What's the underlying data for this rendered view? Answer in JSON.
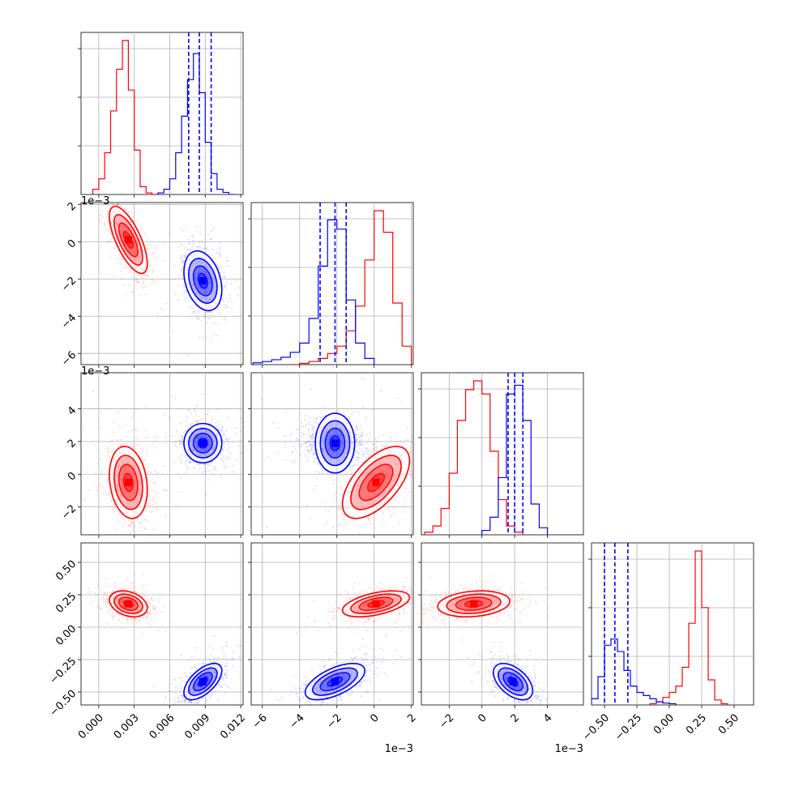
{
  "chart_data": {
    "type": "corner",
    "colors": {
      "red": "#ff0000",
      "blue": "#0000ff"
    },
    "grid": true,
    "variables": [
      {
        "range": [
          -0.0015,
          0.0122
        ],
        "ticks": [
          "0.000",
          "0.003",
          "0.006",
          "0.009",
          "0.012"
        ],
        "tick_values": [
          0,
          0.003,
          0.006,
          0.009,
          0.012
        ],
        "offset": ""
      },
      {
        "range": [
          -0.0066,
          0.0021
        ],
        "ticks": [
          "−6",
          "−4",
          "−2",
          "0",
          "2"
        ],
        "tick_values": [
          -0.006,
          -0.004,
          -0.002,
          0,
          0.002
        ],
        "offset": "1e−3"
      },
      {
        "range": [
          -0.0037,
          0.0062
        ],
        "ticks": [
          "−2",
          "0",
          "2",
          "4"
        ],
        "tick_values": [
          -0.002,
          0,
          0.002,
          0.004
        ],
        "offset": "1e−3"
      },
      {
        "range": [
          -0.6,
          0.65
        ],
        "ticks": [
          "−0.50",
          "−0.25",
          "0.00",
          "0.25",
          "0.50"
        ],
        "tick_values": [
          -0.5,
          -0.25,
          0,
          0.25,
          0.5
        ],
        "offset": ""
      }
    ],
    "histograms": [
      {
        "blue_quantiles": [
          0.0076,
          0.0085,
          0.0095
        ],
        "red": {
          "edges": [
            -0.0005,
            0.0,
            0.0005,
            0.001,
            0.0015,
            0.002,
            0.0025,
            0.003,
            0.0035,
            0.004,
            0.0045,
            0.005
          ],
          "counts": [
            0.1,
            0.3,
            0.8,
            1.6,
            2.4,
            2.95,
            2.0,
            0.85,
            0.15,
            0.03,
            0.0
          ]
        },
        "blue": {
          "edges": [
            0.005,
            0.0055,
            0.006,
            0.0065,
            0.007,
            0.0075,
            0.008,
            0.0085,
            0.009,
            0.0095,
            0.01,
            0.0105,
            0.011,
            0.0115
          ],
          "counts": [
            0.03,
            0.1,
            0.3,
            0.8,
            1.5,
            2.2,
            2.7,
            1.95,
            1.0,
            0.4,
            0.1,
            0.04,
            0.0
          ]
        }
      },
      {
        "blue_quantiles": [
          -0.0029,
          -0.0021,
          -0.0015
        ],
        "red": {
          "edges": [
            -0.0045,
            -0.004,
            -0.0035,
            -0.003,
            -0.0025,
            -0.002,
            -0.0015,
            -0.001,
            -0.0005,
            0.0,
            0.0005,
            0.001,
            0.0015,
            0.002
          ],
          "counts": [
            0.0,
            0.02,
            0.05,
            0.1,
            0.18,
            0.3,
            0.55,
            0.95,
            1.7,
            2.5,
            2.15,
            1.0,
            0.3
          ]
        },
        "blue": {
          "edges": [
            -0.0065,
            -0.006,
            -0.0055,
            -0.005,
            -0.0045,
            -0.004,
            -0.0035,
            -0.003,
            -0.0025,
            -0.002,
            -0.0015,
            -0.001,
            -0.0005,
            0.0
          ],
          "counts": [
            0.03,
            0.05,
            0.08,
            0.12,
            0.2,
            0.35,
            0.75,
            1.6,
            2.35,
            2.2,
            1.05,
            0.35,
            0.1
          ]
        }
      },
      {
        "blue_quantiles": [
          0.0016,
          0.002,
          0.0025
        ],
        "red": {
          "edges": [
            -0.0035,
            -0.003,
            -0.0025,
            -0.002,
            -0.0015,
            -0.001,
            -0.0005,
            0.0,
            0.0005,
            0.001,
            0.0015,
            0.002,
            0.0025
          ],
          "counts": [
            0.03,
            0.1,
            0.3,
            0.7,
            1.3,
            1.65,
            1.75,
            1.6,
            0.95,
            0.4,
            0.1,
            0.03
          ]
        },
        "blue": {
          "edges": [
            0.0,
            0.0005,
            0.001,
            0.0015,
            0.002,
            0.0025,
            0.003,
            0.0035,
            0.004
          ],
          "counts": [
            0.05,
            0.2,
            0.65,
            1.6,
            1.7,
            1.3,
            0.35,
            0.08
          ]
        }
      },
      {
        "blue_quantiles": [
          -0.5,
          -0.42,
          -0.32
        ],
        "red": {
          "edges": [
            -0.15,
            -0.1,
            -0.05,
            0.0,
            0.05,
            0.1,
            0.15,
            0.2,
            0.25,
            0.3,
            0.35,
            0.4,
            0.45
          ],
          "counts": [
            0.02,
            0.05,
            0.12,
            0.2,
            0.3,
            0.6,
            1.3,
            2.45,
            1.55,
            0.4,
            0.08,
            0.02
          ]
        },
        "blue": {
          "edges": [
            -0.6,
            -0.55,
            -0.5,
            -0.45,
            -0.4,
            -0.35,
            -0.3,
            -0.25,
            -0.2,
            -0.15,
            -0.1,
            -0.05,
            0.0,
            0.05
          ],
          "counts": [
            0.1,
            0.45,
            0.95,
            1.05,
            0.85,
            0.55,
            0.3,
            0.2,
            0.15,
            0.1,
            0.05,
            0.03,
            0.02
          ]
        }
      }
    ],
    "clusters": [
      {
        "series": "red",
        "mean": [
          0.0025,
          0.0001,
          -0.0005,
          0.18
        ],
        "std": [
          0.0008,
          0.0009,
          0.0011,
          0.05
        ]
      },
      {
        "series": "blue",
        "mean": [
          0.0088,
          -0.0021,
          0.0019,
          -0.42
        ],
        "std": [
          0.0008,
          0.0008,
          0.0006,
          0.07
        ]
      }
    ],
    "correlations": {
      "red": {
        "1,0": -0.7,
        "2,0": -0.2,
        "2,1": 0.6,
        "3,0": -0.3,
        "3,1": 0.5,
        "3,2": 0.2
      },
      "blue": {
        "1,0": -0.3,
        "2,0": 0.0,
        "2,1": 0.0,
        "3,0": 0.6,
        "3,1": 0.6,
        "3,2": -0.5
      }
    }
  }
}
